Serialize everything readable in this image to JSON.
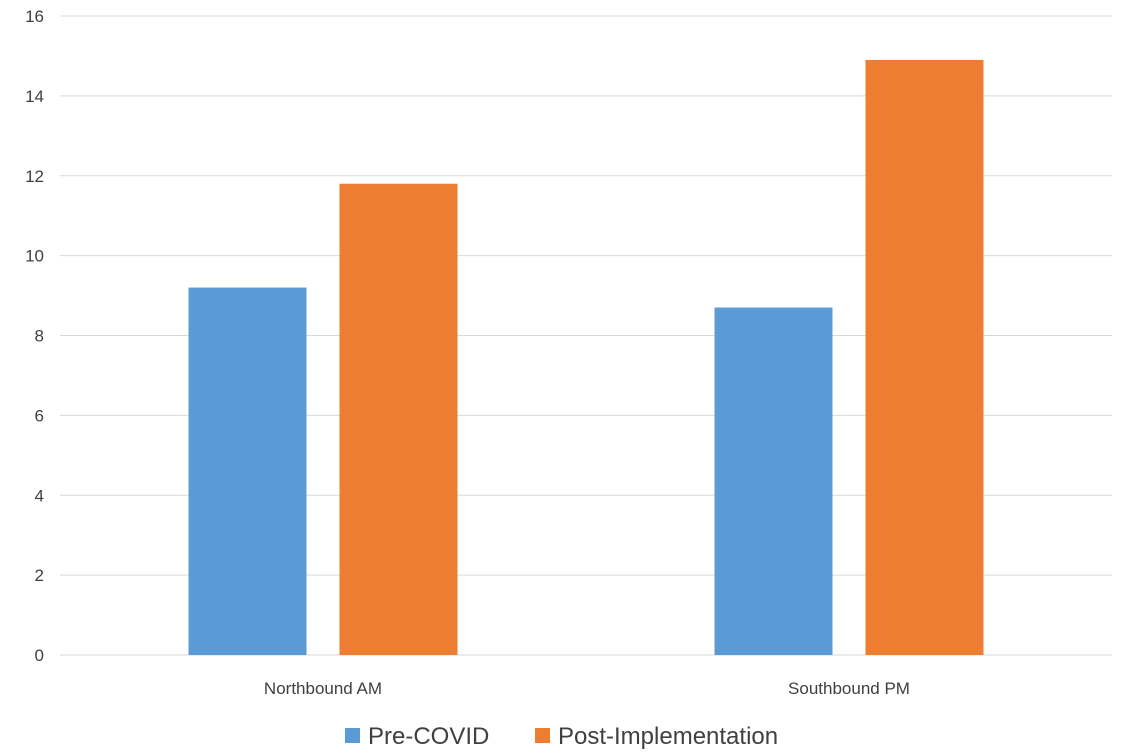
{
  "chart_data": {
    "type": "bar",
    "categories": [
      "Northbound AM",
      "Southbound PM"
    ],
    "series": [
      {
        "name": "Pre-COVID",
        "values": [
          9.2,
          8.7
        ],
        "color": "#5b9bd5"
      },
      {
        "name": "Post-Implementation",
        "values": [
          11.8,
          14.9
        ],
        "color": "#ed7d31"
      }
    ],
    "title": "",
    "xlabel": "",
    "ylabel": "",
    "ylim": [
      0,
      16
    ],
    "yticks": [
      "0",
      "2",
      "4",
      "6",
      "8",
      "10",
      "12",
      "14",
      "16"
    ],
    "grid": true,
    "legend_position": "bottom"
  },
  "colors": {
    "gridline": "#d9d9d9",
    "text": "#404040"
  }
}
